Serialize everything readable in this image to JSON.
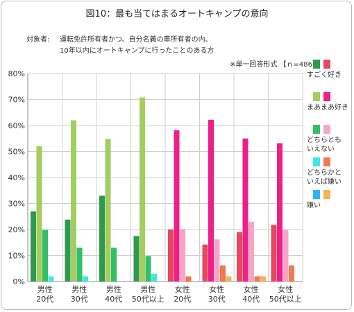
{
  "title": "図10：最も当てはまるオートキャンプの意向",
  "subject_label": "対象者:",
  "subject_line1": "運転免許所有者かつ、自分名義の車所有者の内、",
  "subject_line2": "10年以内にオートキャンプに行ったことのある方",
  "note": "※単一回答形式 【ｎ=486】",
  "chart_data": {
    "type": "bar",
    "title": "図10：最も当てはまるオートキャンプの意向",
    "categories": [
      [
        "男性",
        "20代"
      ],
      [
        "男性",
        "30代"
      ],
      [
        "男性",
        "40代"
      ],
      [
        "男性",
        "50代以上"
      ],
      [
        "女性",
        "20代"
      ],
      [
        "女性",
        "30代"
      ],
      [
        "女性",
        "40代"
      ],
      [
        "女性",
        "50代以上"
      ]
    ],
    "ylim": [
      0,
      80
    ],
    "yticks": [
      "0%",
      "10%",
      "20%",
      "30%",
      "40%",
      "50%",
      "60%",
      "70%",
      "80%"
    ],
    "grid": true,
    "legend_position": "right",
    "series": [
      {
        "name": "すごく好き",
        "male_color": "#2e9a4e",
        "female_color": "#e8485e",
        "values": [
          27,
          23.8,
          33,
          17.5,
          20,
          14.2,
          19,
          21.8
        ]
      },
      {
        "name": "まあまあ好き",
        "male_color": "#a3cd5f",
        "female_color": "#ef1f8a",
        "values": [
          52,
          62,
          54.8,
          70.8,
          58.2,
          62.2,
          55,
          53.2
        ]
      },
      {
        "name": "どちらともいえない",
        "male_color": "#33bf66",
        "female_color": "#f7a5c7",
        "values": [
          19.8,
          13,
          13,
          9.8,
          20.2,
          16.2,
          23,
          19.8
        ]
      },
      {
        "name": "どちらかといえば嫌い",
        "male_color": "#3fe8e5",
        "female_color": "#ee7a4e",
        "values": [
          2,
          2,
          0,
          3,
          2,
          6.2,
          2,
          6.2
        ]
      },
      {
        "name": "嫌い",
        "male_color": "#2eb3ea",
        "female_color": "#f6b25d",
        "values": [
          0,
          0,
          0,
          0,
          0,
          2,
          2,
          0
        ]
      }
    ],
    "legend": [
      {
        "lines": [
          "すごく好き"
        ]
      },
      {
        "lines": [
          "まあまあ好き"
        ]
      },
      {
        "lines": [
          "どちらとも",
          "いえない"
        ]
      },
      {
        "lines": [
          "どちらかと",
          "いえば嫌い"
        ]
      },
      {
        "lines": [
          "嫌い"
        ]
      }
    ]
  }
}
